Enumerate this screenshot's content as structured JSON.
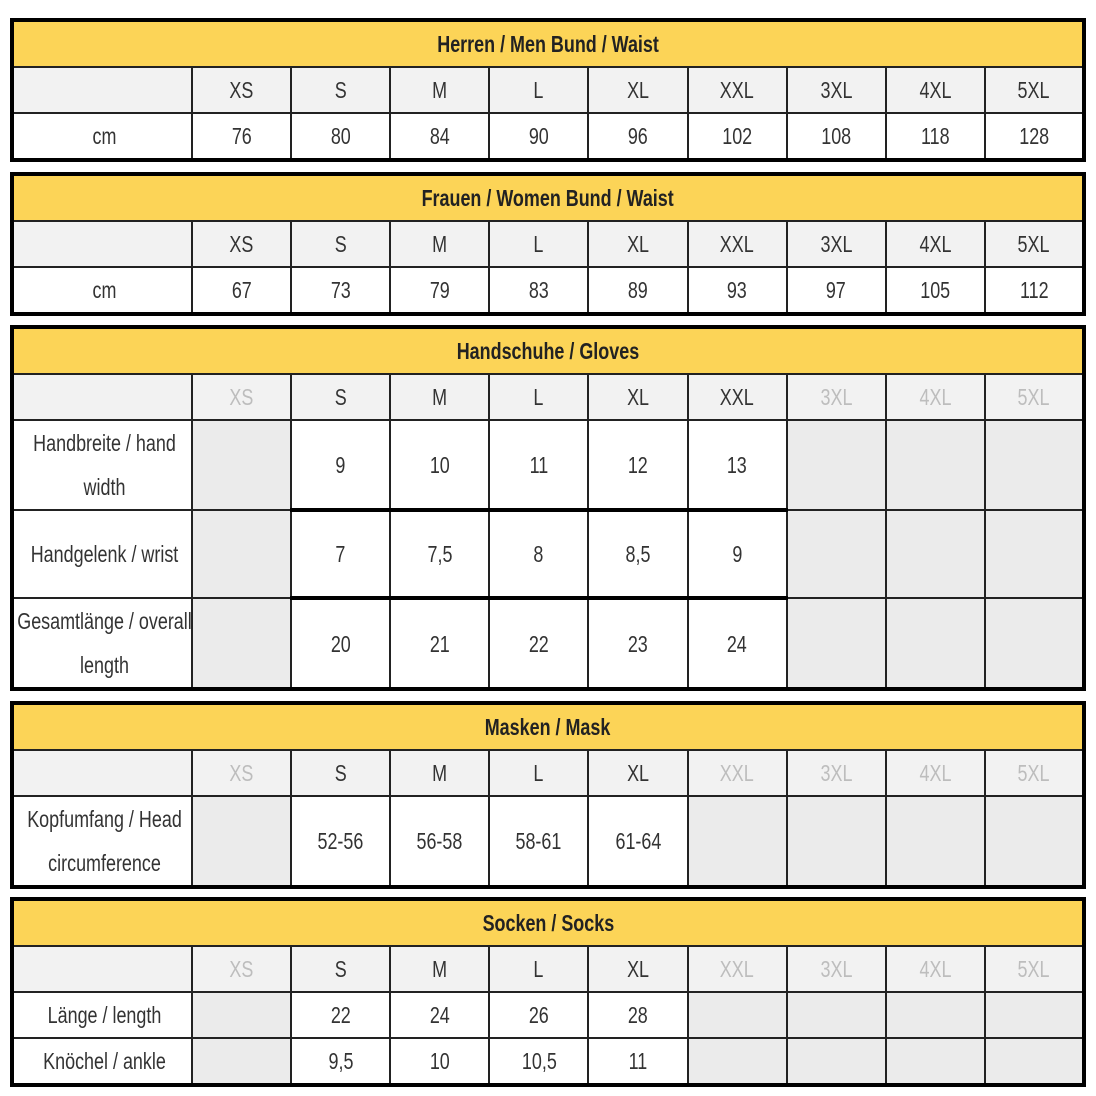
{
  "sizes": [
    "XS",
    "S",
    "M",
    "L",
    "XL",
    "XXL",
    "3XL",
    "4XL",
    "5XL"
  ],
  "tables": [
    {
      "title": "Herren / Men  Bund / Waist",
      "active": [
        0,
        1,
        2,
        3,
        4,
        5,
        6,
        7,
        8
      ],
      "rows": [
        {
          "label": "cm",
          "values": [
            "76",
            "80",
            "84",
            "90",
            "96",
            "102",
            "108",
            "118",
            "128"
          ]
        }
      ]
    },
    {
      "title": "Frauen / Women  Bund / Waist",
      "active": [
        0,
        1,
        2,
        3,
        4,
        5,
        6,
        7,
        8
      ],
      "rows": [
        {
          "label": "cm",
          "values": [
            "67",
            "73",
            "79",
            "83",
            "89",
            "93",
            "97",
            "105",
            "112"
          ]
        }
      ]
    },
    {
      "title": "Handschuhe / Gloves",
      "active": [
        1,
        2,
        3,
        4,
        5
      ],
      "rows": [
        {
          "label": "Handbreite / hand width",
          "values": [
            "",
            "9",
            "10",
            "11",
            "12",
            "13",
            "",
            "",
            ""
          ]
        },
        {
          "label": "Handgelenk / wrist",
          "values": [
            "",
            "7",
            "7,5",
            "8",
            "8,5",
            "9",
            "",
            "",
            ""
          ]
        },
        {
          "label": "Gesamtlänge / overall length",
          "values": [
            "",
            "20",
            "21",
            "22",
            "23",
            "24",
            "",
            "",
            ""
          ]
        }
      ]
    },
    {
      "title": "Masken / Mask",
      "active": [
        1,
        2,
        3,
        4
      ],
      "rows": [
        {
          "label": "Kopfumfang / Head circumference",
          "values": [
            "",
            "52-56",
            "56-58",
            "58-61",
            "61-64",
            "",
            "",
            "",
            ""
          ]
        }
      ]
    },
    {
      "title": "Socken / Socks",
      "active": [
        1,
        2,
        3,
        4
      ],
      "rows": [
        {
          "label": "Länge / length",
          "values": [
            "",
            "22",
            "24",
            "26",
            "28",
            "",
            "",
            "",
            ""
          ]
        },
        {
          "label": "Knöchel / ankle",
          "values": [
            "",
            "9,5",
            "10",
            "10,5",
            "11",
            "",
            "",
            "",
            ""
          ]
        }
      ]
    }
  ],
  "colors": {
    "title_bg": "#fcd457",
    "header_bg": "#f2f2f2",
    "unavailable_bg": "#ebebeb",
    "inactive_text": "#bdbdbd"
  }
}
